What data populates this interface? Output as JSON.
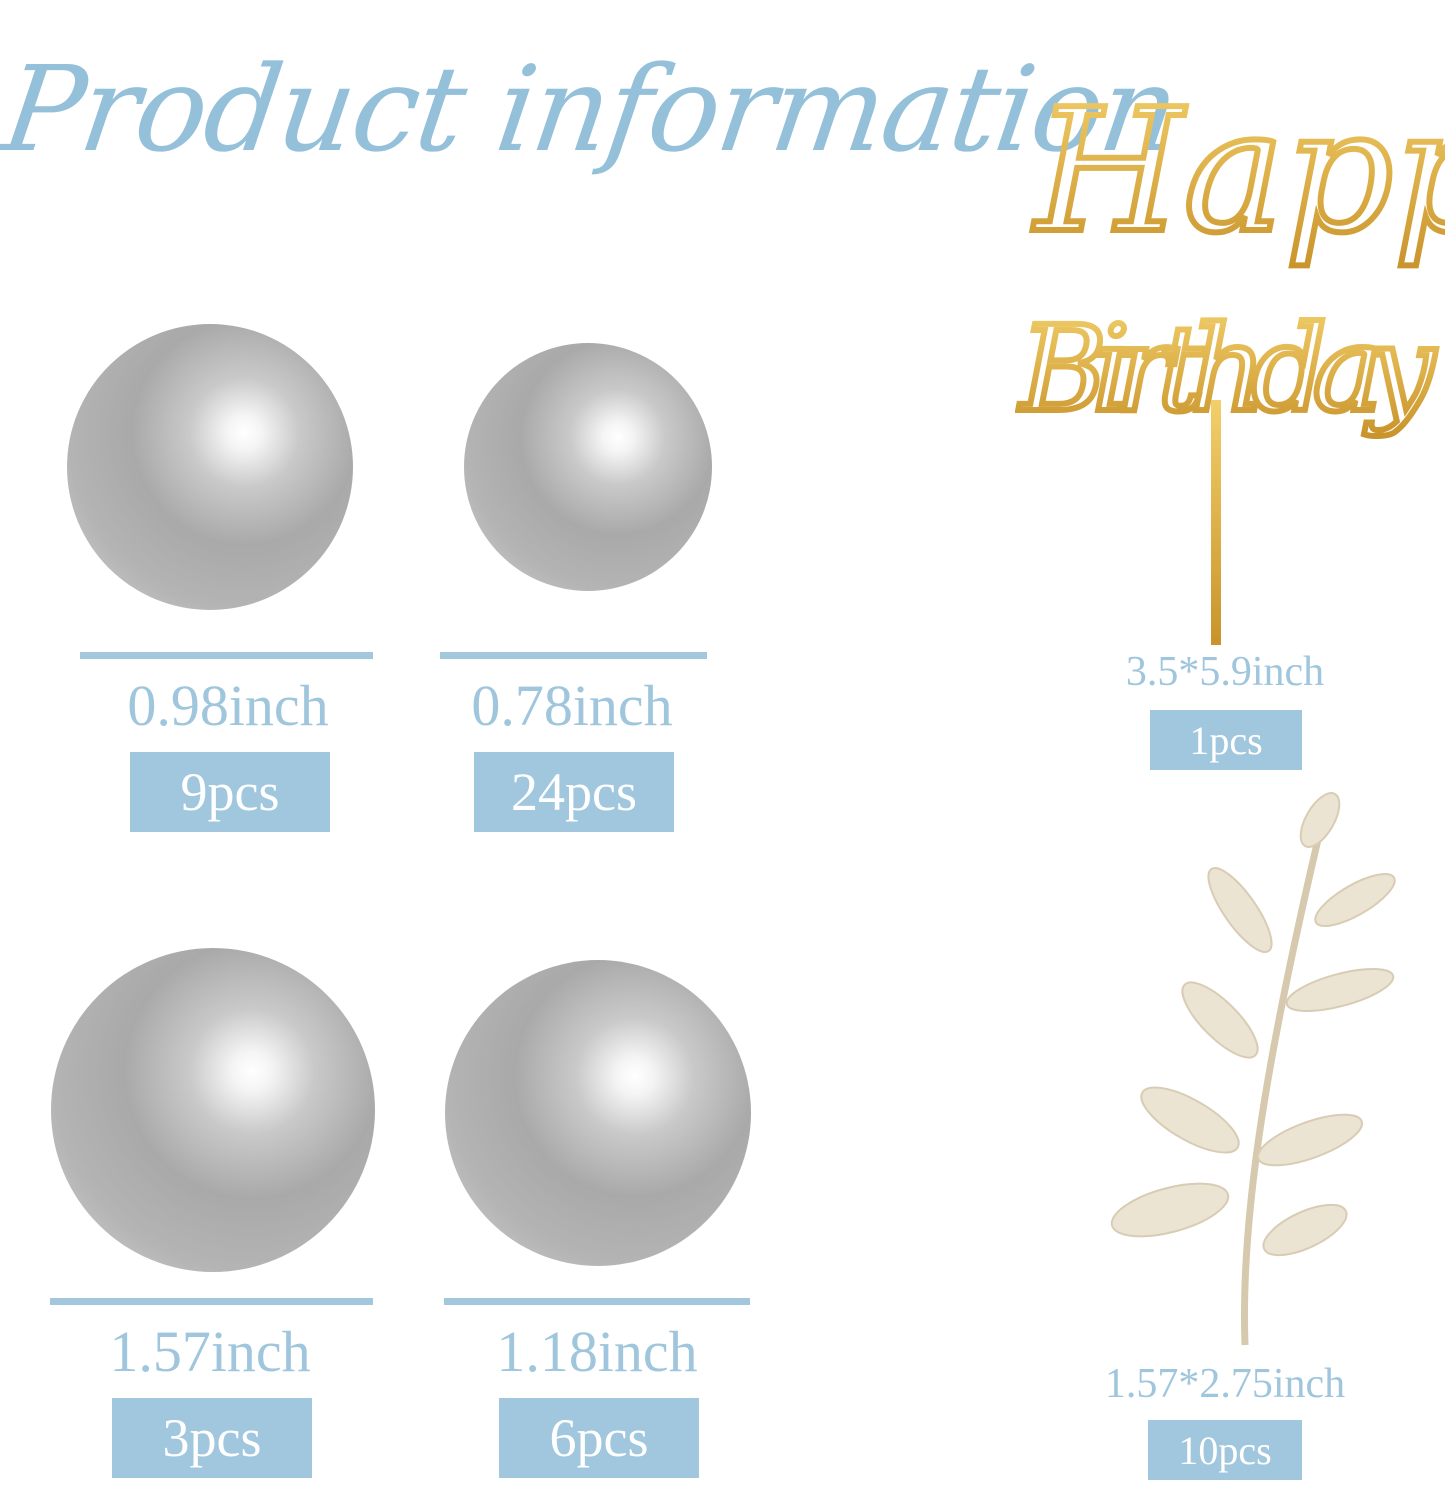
{
  "title": "Product information",
  "colors": {
    "accent": "#a0c7dd",
    "gold": "#d9a93a",
    "pearl": "#b0b0b0"
  },
  "items": [
    {
      "name": "pearl",
      "size": "0.98inch",
      "qty": "9pcs"
    },
    {
      "name": "pearl",
      "size": "0.78inch",
      "qty": "24pcs"
    },
    {
      "name": "pearl",
      "size": "1.57inch",
      "qty": "3pcs"
    },
    {
      "name": "pearl",
      "size": "1.18inch",
      "qty": "6pcs"
    },
    {
      "name": "cake-topper",
      "text": "Happy Birthday",
      "size": "3.5*5.9inch",
      "qty": "1pcs"
    },
    {
      "name": "leaf-pick",
      "size": "1.57*2.75inch",
      "qty": "10pcs"
    }
  ]
}
